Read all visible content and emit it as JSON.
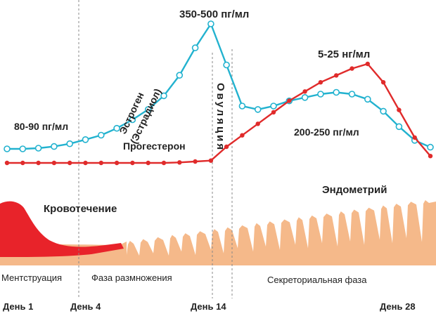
{
  "labels": {
    "peak_estrogen": "350-500 пг/мл",
    "estrogen_line1": "Эстроген",
    "estrogen_line2": "(Эстрадиол)",
    "estrogen_start": "80-90 пг/мл",
    "progesterone_peak": "5-25 нг/мл",
    "progesterone": "Прогестерон",
    "estrogen_second": "200-250 пг/мл",
    "ovulation": "Овуляция",
    "endometrium": "Эндометрий",
    "bleeding": "Кровотечение"
  },
  "phases": [
    "Ментструация",
    "Фаза размножения",
    "Секреториальная фаза"
  ],
  "days": [
    "День 1",
    "День 4",
    "День  14",
    "День  28"
  ],
  "colors": {
    "estrogen": "#22b2cf",
    "progesterone": "#e02b2b",
    "endometrium": "#f5b98a",
    "bleeding": "#e8232a",
    "divider": "#888888"
  },
  "chart_data": {
    "type": "line",
    "x_range": [
      1,
      28
    ],
    "series": [
      {
        "name": "Эстроген (Эстрадиол)",
        "marker": "open-circle",
        "x": [
          1,
          2,
          3,
          4,
          5,
          6,
          7,
          8,
          9,
          10,
          11,
          12,
          13,
          14,
          15,
          16,
          17,
          18,
          19,
          20,
          21,
          22,
          23,
          24,
          25,
          26,
          27,
          28
        ],
        "y": [
          85,
          85,
          87,
          92,
          100,
          112,
          125,
          145,
          170,
          200,
          240,
          300,
          380,
          450,
          330,
          210,
          200,
          210,
          225,
          235,
          245,
          250,
          245,
          230,
          195,
          150,
          110,
          90
        ]
      },
      {
        "name": "Прогестерон",
        "marker": "filled-circle",
        "x": [
          1,
          2,
          3,
          4,
          5,
          6,
          7,
          8,
          9,
          10,
          11,
          12,
          13,
          14,
          15,
          16,
          17,
          18,
          19,
          20,
          21,
          22,
          23,
          24,
          25,
          26,
          27,
          28
        ],
        "y": [
          0.5,
          0.5,
          0.5,
          0.5,
          0.5,
          0.5,
          0.5,
          0.5,
          0.5,
          0.5,
          0.5,
          0.6,
          0.8,
          1,
          4,
          6.5,
          9,
          11.5,
          14,
          16,
          18,
          19.5,
          21,
          22,
          18,
          12,
          6,
          2
        ]
      }
    ]
  }
}
